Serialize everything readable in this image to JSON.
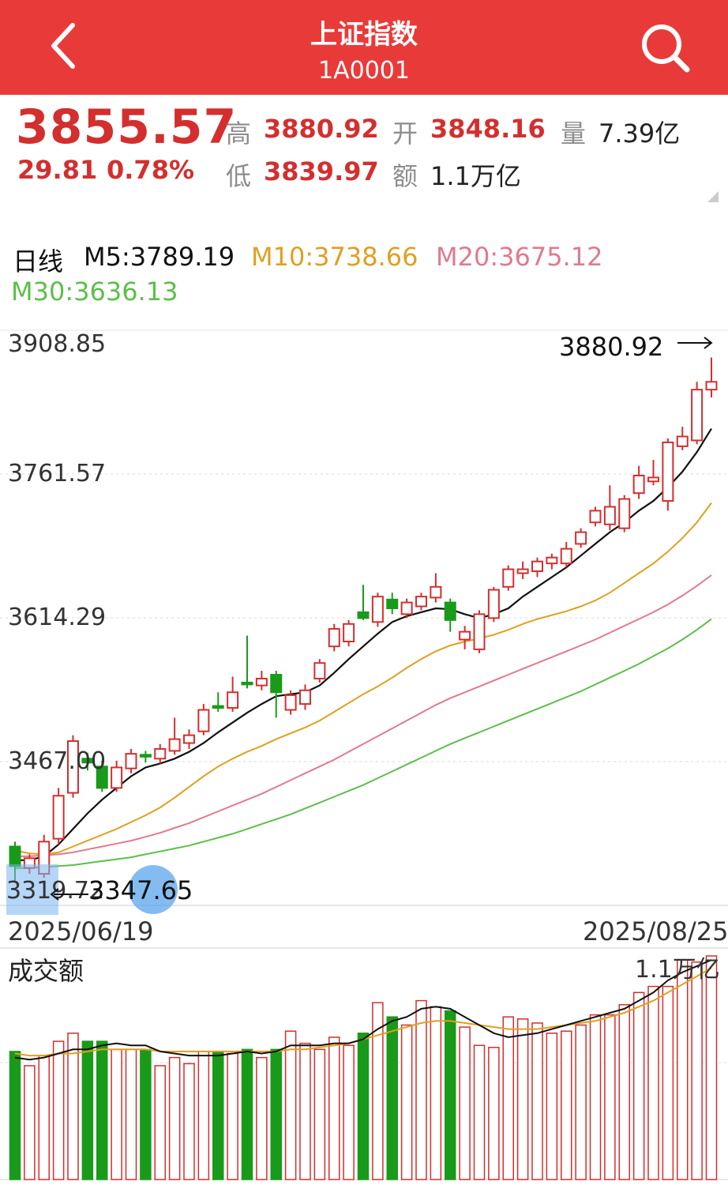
{
  "header": {
    "title": "上证指数",
    "code": "1A0001"
  },
  "icons": {
    "back": "chevron-left-icon",
    "search": "search-icon"
  },
  "quote": {
    "price": "3855.57",
    "change": "29.81",
    "change_pct": "0.78%",
    "high_label": "高",
    "high": "3880.92",
    "low_label": "低",
    "low": "3839.97",
    "open_label": "开",
    "open": "3848.16",
    "amount_label": "额",
    "amount": "1.1万亿",
    "volume_label": "量",
    "volume": "7.39亿"
  },
  "ma_legend": {
    "period": "日线",
    "m5": "M5:3789.19",
    "m10": "M10:3738.66",
    "m20": "M20:3675.12",
    "m30": "M30:3636.13"
  },
  "colors": {
    "header": "#e93a3a",
    "up": "#d32f2f",
    "down": "#1a9a1a",
    "m5": "#111111",
    "m10": "#e0a020",
    "m20": "#e07a90",
    "m30": "#5cbf4a"
  },
  "chart_data": {
    "type": "candlestick",
    "y_ticks": [
      "3908.85",
      "3761.57",
      "3614.29",
      "3467.00"
    ],
    "ylim": [
      3319.72,
      3908.85
    ],
    "x_start": "2025/06/19",
    "x_end": "2025/08/25",
    "high_annotation": "3880.92",
    "low_annotation": "3347.65",
    "low_axis_value": "3319.72",
    "candles": [
      [
        3380,
        3360,
        3385,
        3345
      ],
      [
        3358,
        3368,
        3372,
        3352
      ],
      [
        3352,
        3385,
        3392,
        3348
      ],
      [
        3388,
        3432,
        3440,
        3382
      ],
      [
        3435,
        3488,
        3494,
        3430
      ],
      [
        3470,
        3466,
        3476,
        3458
      ],
      [
        3462,
        3440,
        3468,
        3436
      ],
      [
        3440,
        3461,
        3468,
        3436
      ],
      [
        3460,
        3475,
        3480,
        3455
      ],
      [
        3474,
        3472,
        3478,
        3466
      ],
      [
        3470,
        3480,
        3485,
        3465
      ],
      [
        3478,
        3490,
        3512,
        3474
      ],
      [
        3486,
        3494,
        3500,
        3480
      ],
      [
        3498,
        3520,
        3526,
        3494
      ],
      [
        3524,
        3522,
        3538,
        3518
      ],
      [
        3522,
        3538,
        3554,
        3518
      ],
      [
        3548,
        3546,
        3596,
        3542
      ],
      [
        3545,
        3552,
        3560,
        3540
      ],
      [
        3556,
        3538,
        3560,
        3512
      ],
      [
        3520,
        3535,
        3540,
        3515
      ],
      [
        3526,
        3540,
        3546,
        3520
      ],
      [
        3552,
        3568,
        3572,
        3548
      ],
      [
        3585,
        3603,
        3608,
        3580
      ],
      [
        3590,
        3608,
        3612,
        3585
      ],
      [
        3620,
        3614,
        3648,
        3612
      ],
      [
        3610,
        3636,
        3640,
        3605
      ],
      [
        3633,
        3624,
        3640,
        3618
      ],
      [
        3618,
        3630,
        3634,
        3614
      ],
      [
        3626,
        3636,
        3640,
        3622
      ],
      [
        3635,
        3646,
        3660,
        3630
      ],
      [
        3630,
        3612,
        3634,
        3600
      ],
      [
        3592,
        3600,
        3606,
        3582
      ],
      [
        3582,
        3618,
        3622,
        3578
      ],
      [
        3614,
        3643,
        3646,
        3610
      ],
      [
        3646,
        3664,
        3668,
        3642
      ],
      [
        3660,
        3664,
        3672,
        3654
      ],
      [
        3662,
        3672,
        3676,
        3656
      ],
      [
        3670,
        3676,
        3680,
        3664
      ],
      [
        3670,
        3685,
        3692,
        3666
      ],
      [
        3690,
        3702,
        3706,
        3686
      ],
      [
        3712,
        3724,
        3728,
        3708
      ],
      [
        3710,
        3728,
        3750,
        3704
      ],
      [
        3706,
        3736,
        3740,
        3702
      ],
      [
        3742,
        3760,
        3770,
        3736
      ],
      [
        3754,
        3758,
        3776,
        3750
      ],
      [
        3734,
        3794,
        3798,
        3724
      ],
      [
        3790,
        3800,
        3810,
        3786
      ],
      [
        3796,
        3848,
        3856,
        3792
      ],
      [
        3848,
        3856,
        3880.92,
        3840
      ]
    ],
    "ma_series": [
      {
        "name": "M5",
        "values": [
          3366,
          3366,
          3370,
          3382,
          3398,
          3414,
          3428,
          3440,
          3452,
          3461,
          3465,
          3470,
          3477,
          3486,
          3497,
          3507,
          3517,
          3526,
          3534,
          3536,
          3538,
          3545,
          3558,
          3572,
          3585,
          3598,
          3610,
          3616,
          3620,
          3624,
          3623,
          3618,
          3614,
          3618,
          3624,
          3636,
          3646,
          3656,
          3666,
          3678,
          3690,
          3702,
          3712,
          3724,
          3734,
          3748,
          3764,
          3784,
          3808
        ]
      },
      {
        "name": "M10",
        "values": [
          3376,
          3373,
          3372,
          3374,
          3380,
          3386,
          3392,
          3398,
          3405,
          3412,
          3420,
          3430,
          3441,
          3452,
          3462,
          3470,
          3477,
          3483,
          3490,
          3496,
          3502,
          3509,
          3518,
          3527,
          3536,
          3544,
          3553,
          3563,
          3572,
          3580,
          3586,
          3590,
          3593,
          3597,
          3602,
          3608,
          3613,
          3617,
          3621,
          3626,
          3632,
          3640,
          3650,
          3660,
          3670,
          3682,
          3696,
          3712,
          3732
        ]
      },
      {
        "name": "M20",
        "values": [
          3370,
          3370,
          3371,
          3372,
          3374,
          3377,
          3380,
          3383,
          3386,
          3390,
          3394,
          3399,
          3404,
          3410,
          3416,
          3422,
          3428,
          3434,
          3441,
          3448,
          3455,
          3462,
          3469,
          3477,
          3485,
          3493,
          3501,
          3509,
          3517,
          3525,
          3532,
          3538,
          3544,
          3550,
          3556,
          3562,
          3568,
          3574,
          3580,
          3586,
          3592,
          3599,
          3606,
          3613,
          3620,
          3628,
          3637,
          3647,
          3658
        ]
      },
      {
        "name": "M30",
        "values": [
          3358,
          3358,
          3359,
          3360,
          3361,
          3363,
          3365,
          3367,
          3369,
          3372,
          3375,
          3378,
          3381,
          3385,
          3389,
          3393,
          3398,
          3403,
          3408,
          3413,
          3419,
          3425,
          3431,
          3437,
          3443,
          3450,
          3457,
          3464,
          3471,
          3478,
          3485,
          3491,
          3497,
          3503,
          3509,
          3515,
          3521,
          3527,
          3533,
          3539,
          3546,
          3553,
          3560,
          3567,
          3575,
          3583,
          3592,
          3602,
          3613
        ]
      }
    ],
    "volume": {
      "title": "成交额",
      "max_label": "1.1万亿",
      "values": [
        0.63,
        0.56,
        0.61,
        0.68,
        0.72,
        0.68,
        0.68,
        0.64,
        0.64,
        0.64,
        0.56,
        0.6,
        0.57,
        0.63,
        0.63,
        0.62,
        0.64,
        0.6,
        0.64,
        0.73,
        0.67,
        0.64,
        0.7,
        0.66,
        0.72,
        0.87,
        0.8,
        0.76,
        0.88,
        0.85,
        0.83,
        0.75,
        0.66,
        0.65,
        0.8,
        0.79,
        0.77,
        0.72,
        0.73,
        0.76,
        0.81,
        0.81,
        0.86,
        0.92,
        0.95,
        0.95,
        1.08,
        1.07,
        1.1
      ],
      "ma1": [
        0.6,
        0.59,
        0.6,
        0.62,
        0.64,
        0.64,
        0.66,
        0.67,
        0.66,
        0.66,
        0.63,
        0.62,
        0.61,
        0.61,
        0.61,
        0.62,
        0.63,
        0.62,
        0.63,
        0.66,
        0.66,
        0.66,
        0.67,
        0.67,
        0.69,
        0.74,
        0.78,
        0.8,
        0.84,
        0.85,
        0.84,
        0.8,
        0.76,
        0.72,
        0.7,
        0.71,
        0.72,
        0.74,
        0.76,
        0.78,
        0.8,
        0.82,
        0.84,
        0.88,
        0.92,
        0.98,
        1.02,
        1.05,
        1.08
      ],
      "ma2": [
        0.62,
        0.61,
        0.61,
        0.62,
        0.62,
        0.63,
        0.64,
        0.64,
        0.64,
        0.64,
        0.63,
        0.63,
        0.63,
        0.63,
        0.63,
        0.63,
        0.63,
        0.63,
        0.63,
        0.64,
        0.64,
        0.65,
        0.66,
        0.67,
        0.69,
        0.71,
        0.73,
        0.75,
        0.77,
        0.78,
        0.78,
        0.77,
        0.76,
        0.75,
        0.74,
        0.74,
        0.74,
        0.75,
        0.76,
        0.77,
        0.78,
        0.8,
        0.82,
        0.85,
        0.88,
        0.92,
        0.96,
        1.0,
        1.04
      ]
    }
  }
}
